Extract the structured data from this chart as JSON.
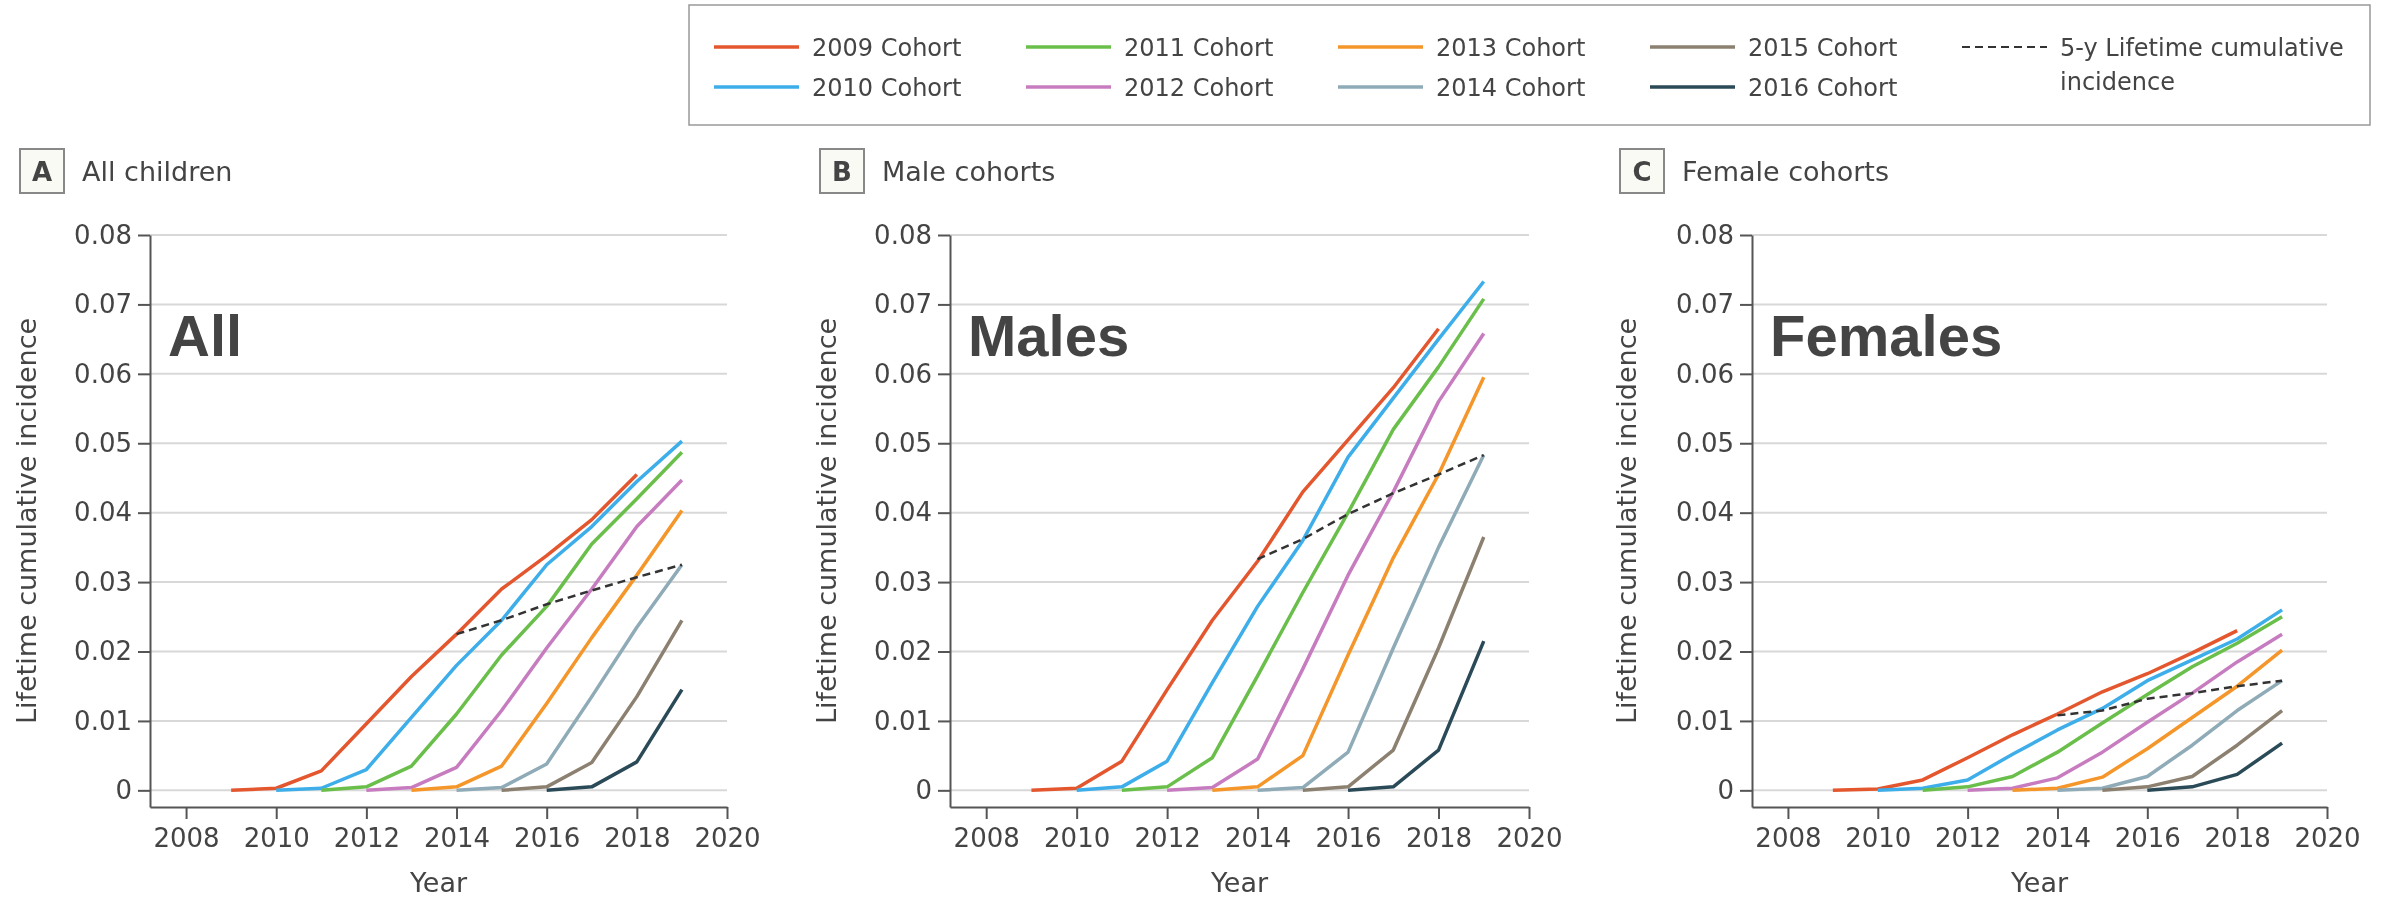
{
  "chart_data": [
    {
      "type": "line",
      "title": "All children",
      "xlabel": "Year",
      "ylabel": "Lifetime cumulative incidence",
      "annotations": [
        "A",
        "All"
      ],
      "xlim": [
        2007.2,
        2020
      ],
      "xticks": [
        2008,
        2010,
        2012,
        2014,
        2016,
        2018,
        2020
      ],
      "ylim": [
        -0.0024,
        0.08
      ],
      "yticks": [
        0,
        0.01,
        0.02,
        0.03,
        0.04,
        0.05,
        0.06,
        0.07,
        0.08
      ],
      "grid": "y",
      "legend": "top",
      "series": [
        {
          "name": "2009 Cohort",
          "color": "#e4572e",
          "x": [
            2009,
            2010,
            2011,
            2012,
            2013,
            2014,
            2015,
            2016,
            2017,
            2018
          ],
          "values": [
            0,
            0.0003,
            0.0028,
            0.0096,
            0.0164,
            0.0225,
            0.029,
            0.0338,
            0.039,
            0.0455
          ]
        },
        {
          "name": "2010 Cohort",
          "color": "#3daee9",
          "x": [
            2010,
            2011,
            2012,
            2013,
            2014,
            2015,
            2016,
            2017,
            2018,
            2019
          ],
          "values": [
            0,
            0.0003,
            0.003,
            0.0105,
            0.018,
            0.0245,
            0.0325,
            0.038,
            0.0445,
            0.0503
          ]
        },
        {
          "name": "2011 Cohort",
          "color": "#6abf4b",
          "x": [
            2011,
            2012,
            2013,
            2014,
            2015,
            2016,
            2017,
            2018,
            2019
          ],
          "values": [
            0,
            0.0005,
            0.0035,
            0.011,
            0.0195,
            0.0265,
            0.0355,
            0.042,
            0.0487
          ]
        },
        {
          "name": "2012 Cohort",
          "color": "#c77cc0",
          "x": [
            2012,
            2013,
            2014,
            2015,
            2016,
            2017,
            2018,
            2019
          ],
          "values": [
            0,
            0.0004,
            0.0033,
            0.0115,
            0.0205,
            0.029,
            0.038,
            0.0447
          ]
        },
        {
          "name": "2013 Cohort",
          "color": "#f5962a",
          "x": [
            2013,
            2014,
            2015,
            2016,
            2017,
            2018,
            2019
          ],
          "values": [
            0,
            0.0005,
            0.0035,
            0.0125,
            0.022,
            0.031,
            0.0403
          ]
        },
        {
          "name": "2014 Cohort",
          "color": "#8fabb8",
          "x": [
            2014,
            2015,
            2016,
            2017,
            2018,
            2019
          ],
          "values": [
            0,
            0.0004,
            0.0038,
            0.0135,
            0.0235,
            0.0325
          ]
        },
        {
          "name": "2015 Cohort",
          "color": "#8c8070",
          "x": [
            2015,
            2016,
            2017,
            2018,
            2019
          ],
          "values": [
            0,
            0.0005,
            0.004,
            0.0135,
            0.0245
          ]
        },
        {
          "name": "2016 Cohort",
          "color": "#2b4a58",
          "x": [
            2016,
            2017,
            2018,
            2019
          ],
          "values": [
            0,
            0.0005,
            0.0041,
            0.0145
          ]
        },
        {
          "name": "5-y Lifetime cumulative incidence",
          "color": "#333333",
          "line_style": "dashed",
          "x": [
            2014,
            2015,
            2016,
            2017,
            2018,
            2019
          ],
          "values": [
            0.0225,
            0.0245,
            0.0268,
            0.0288,
            0.0307,
            0.0325
          ]
        }
      ]
    },
    {
      "type": "line",
      "title": "Male cohorts",
      "xlabel": "Year",
      "ylabel": "Lifetime cumulative incidence",
      "annotations": [
        "B",
        "Males"
      ],
      "xlim": [
        2007.2,
        2020
      ],
      "xticks": [
        2008,
        2010,
        2012,
        2014,
        2016,
        2018,
        2020
      ],
      "ylim": [
        -0.0024,
        0.08
      ],
      "yticks": [
        0,
        0.01,
        0.02,
        0.03,
        0.04,
        0.05,
        0.06,
        0.07,
        0.08
      ],
      "grid": "y",
      "series": [
        {
          "color": "#e4572e",
          "x": [
            2009,
            2010,
            2011,
            2012,
            2013,
            2014,
            2015,
            2016,
            2017,
            2018
          ],
          "values": [
            0,
            0.0003,
            0.0042,
            0.0145,
            0.0245,
            0.033,
            0.043,
            0.0505,
            0.058,
            0.0665
          ]
        },
        {
          "color": "#3daee9",
          "x": [
            2010,
            2011,
            2012,
            2013,
            2014,
            2015,
            2016,
            2017,
            2018,
            2019
          ],
          "values": [
            0,
            0.0005,
            0.0042,
            0.0155,
            0.0265,
            0.036,
            0.048,
            0.0565,
            0.065,
            0.0733
          ]
        },
        {
          "color": "#6abf4b",
          "x": [
            2011,
            2012,
            2013,
            2014,
            2015,
            2016,
            2017,
            2018,
            2019
          ],
          "values": [
            0,
            0.0005,
            0.0047,
            0.0165,
            0.0285,
            0.04,
            0.052,
            0.061,
            0.0708
          ]
        },
        {
          "color": "#c77cc0",
          "x": [
            2012,
            2013,
            2014,
            2015,
            2016,
            2017,
            2018,
            2019
          ],
          "values": [
            0,
            0.0004,
            0.0045,
            0.0175,
            0.031,
            0.043,
            0.056,
            0.0658
          ]
        },
        {
          "color": "#f5962a",
          "x": [
            2013,
            2014,
            2015,
            2016,
            2017,
            2018,
            2019
          ],
          "values": [
            0,
            0.0005,
            0.005,
            0.0195,
            0.0335,
            0.0455,
            0.0595
          ]
        },
        {
          "color": "#8fabb8",
          "x": [
            2014,
            2015,
            2016,
            2017,
            2018,
            2019
          ],
          "values": [
            0,
            0.0004,
            0.0055,
            0.0205,
            0.035,
            0.0483
          ]
        },
        {
          "color": "#8c8070",
          "x": [
            2015,
            2016,
            2017,
            2018,
            2019
          ],
          "values": [
            0,
            0.0005,
            0.0058,
            0.0205,
            0.0365
          ]
        },
        {
          "color": "#2b4a58",
          "x": [
            2016,
            2017,
            2018,
            2019
          ],
          "values": [
            0,
            0.0005,
            0.0058,
            0.0215
          ]
        },
        {
          "color": "#333333",
          "line_style": "dashed",
          "x": [
            2014,
            2015,
            2016,
            2017,
            2018,
            2019
          ],
          "values": [
            0.0333,
            0.0362,
            0.0398,
            0.0428,
            0.0455,
            0.0483
          ]
        }
      ]
    },
    {
      "type": "line",
      "title": "Female cohorts",
      "xlabel": "Year",
      "ylabel": "Lifetime cumulative incidence",
      "annotations": [
        "C",
        "Females"
      ],
      "xlim": [
        2007.2,
        2020
      ],
      "xticks": [
        2008,
        2010,
        2012,
        2014,
        2016,
        2018,
        2020
      ],
      "ylim": [
        -0.0024,
        0.08
      ],
      "yticks": [
        0,
        0.01,
        0.02,
        0.03,
        0.04,
        0.05,
        0.06,
        0.07,
        0.08
      ],
      "grid": "y",
      "series": [
        {
          "color": "#e4572e",
          "x": [
            2009,
            2010,
            2011,
            2012,
            2013,
            2014,
            2015,
            2016,
            2017,
            2018
          ],
          "values": [
            0,
            0.0002,
            0.0015,
            0.0047,
            0.008,
            0.011,
            0.0142,
            0.0168,
            0.0198,
            0.023
          ]
        },
        {
          "color": "#3daee9",
          "x": [
            2010,
            2011,
            2012,
            2013,
            2014,
            2015,
            2016,
            2017,
            2018,
            2019
          ],
          "values": [
            0,
            0.0003,
            0.0015,
            0.0052,
            0.0087,
            0.0118,
            0.0158,
            0.0188,
            0.0218,
            0.026
          ]
        },
        {
          "color": "#6abf4b",
          "x": [
            2011,
            2012,
            2013,
            2014,
            2015,
            2016,
            2017,
            2018,
            2019
          ],
          "values": [
            0,
            0.0005,
            0.002,
            0.0055,
            0.0097,
            0.0138,
            0.0178,
            0.0212,
            0.025
          ]
        },
        {
          "color": "#c77cc0",
          "x": [
            2012,
            2013,
            2014,
            2015,
            2016,
            2017,
            2018,
            2019
          ],
          "values": [
            0,
            0.0003,
            0.0018,
            0.0055,
            0.0098,
            0.014,
            0.0185,
            0.0225
          ]
        },
        {
          "color": "#f5962a",
          "x": [
            2013,
            2014,
            2015,
            2016,
            2017,
            2018,
            2019
          ],
          "values": [
            0,
            0.0003,
            0.0019,
            0.006,
            0.0105,
            0.015,
            0.0202
          ]
        },
        {
          "color": "#8fabb8",
          "x": [
            2014,
            2015,
            2016,
            2017,
            2018,
            2019
          ],
          "values": [
            0,
            0.0003,
            0.002,
            0.0065,
            0.0115,
            0.0158
          ]
        },
        {
          "color": "#8c8070",
          "x": [
            2015,
            2016,
            2017,
            2018,
            2019
          ],
          "values": [
            0,
            0.0005,
            0.002,
            0.0065,
            0.0115
          ]
        },
        {
          "color": "#2b4a58",
          "x": [
            2016,
            2017,
            2018,
            2019
          ],
          "values": [
            0,
            0.0005,
            0.0023,
            0.0068
          ]
        },
        {
          "color": "#333333",
          "line_style": "dashed",
          "x": [
            2014,
            2015,
            2016,
            2017,
            2018,
            2019
          ],
          "values": [
            0.0108,
            0.0115,
            0.0132,
            0.014,
            0.015,
            0.0158
          ]
        }
      ]
    }
  ]
}
